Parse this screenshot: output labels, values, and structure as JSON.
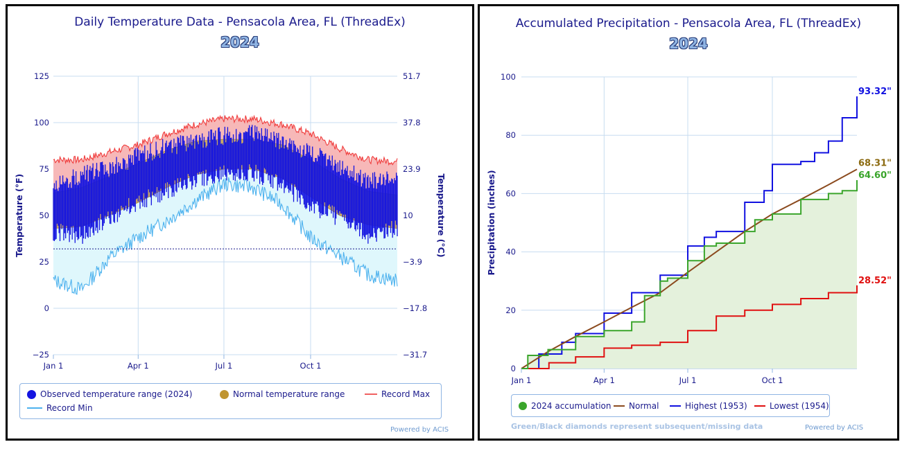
{
  "panels": {
    "temperature": {
      "title": "Daily Temperature Data - Pensacola Area, FL (ThreadEx)",
      "year": "2024",
      "left_axis_title": "Temperature (°F)",
      "right_axis_title": "Temperature (°C)",
      "left_ticks": [
        "125",
        "100",
        "75",
        "50",
        "25",
        "0",
        "−25"
      ],
      "right_ticks": [
        "51.7",
        "37.8",
        "23.9",
        "10",
        "−3.9",
        "−17.8",
        "−31.7"
      ],
      "x_ticks": [
        "Jan 1",
        "Apr 1",
        "Jul 1",
        "Oct 1"
      ],
      "legend": {
        "observed": "Observed temperature range (2024)",
        "normal": "Normal temperature range",
        "record_max": "Record Max",
        "record_min": "Record Min"
      },
      "credit": "Powered by ACIS"
    },
    "precipitation": {
      "title": "Accumulated Precipitation - Pensacola Area, FL (ThreadEx)",
      "year": "2024",
      "y_axis_title": "Precipitation (inches)",
      "y_ticks": [
        "100",
        "80",
        "60",
        "40",
        "20",
        "0"
      ],
      "x_ticks": [
        "Jan 1",
        "Apr 1",
        "Jul 1",
        "Oct 1"
      ],
      "end_labels": {
        "highest": "93.32\"",
        "normal": "68.31\"",
        "accum": "64.60\"",
        "lowest": "28.52\""
      },
      "legend": {
        "accum": "2024 accumulation",
        "normal": "Normal",
        "highest": "Highest (1953)",
        "lowest": "Lowest (1954)"
      },
      "note": "Green/Black diamonds represent subsequent/missing data",
      "credit": "Powered by ACIS"
    }
  },
  "colors": {
    "observed": "#1414e0",
    "normal_fill": "#c9a866",
    "record_max": "#f03c3c",
    "record_max_fill": "#f7b8b8",
    "record_min": "#4db2ee",
    "record_min_fill": "#dff7fc",
    "accum": "#3aa52b",
    "accum_fill": "#e4f1dc",
    "normal_precip": "#8b4a1e",
    "highest": "#1010e0",
    "lowest": "#e01010",
    "freezing_line": "#1a1a8c"
  },
  "chart_data": [
    {
      "type": "area",
      "title": "Daily Temperature Data - Pensacola Area, FL (ThreadEx)",
      "subtitle": "2024",
      "ylabel": "Temperature (°F)",
      "y2label": "Temperature (°C)",
      "ylim": [
        -25,
        125
      ],
      "y2lim": [
        -31.7,
        51.7
      ],
      "x_ticks": [
        "Jan 1",
        "Apr 1",
        "Jul 1",
        "Oct 1"
      ],
      "x_domain_days": [
        1,
        366
      ],
      "grid": true,
      "freezing_line_f": 32,
      "series": [
        {
          "name": "Record Max",
          "x": [
            1,
            31,
            60,
            91,
            121,
            152,
            182,
            213,
            244,
            274,
            305,
            335,
            366
          ],
          "values": [
            80,
            80,
            84,
            88,
            94,
            99,
            102,
            102,
            99,
            94,
            86,
            80,
            79
          ]
        },
        {
          "name": "Record Min",
          "x": [
            1,
            31,
            60,
            91,
            121,
            152,
            182,
            213,
            244,
            274,
            305,
            335,
            366
          ],
          "values": [
            15,
            10,
            27,
            38,
            47,
            58,
            67,
            65,
            56,
            38,
            28,
            18,
            15
          ]
        },
        {
          "name": "Normal temperature range (high)",
          "x": [
            1,
            31,
            60,
            91,
            121,
            152,
            182,
            213,
            244,
            274,
            305,
            335,
            366
          ],
          "values": [
            62,
            65,
            71,
            78,
            85,
            90,
            91,
            91,
            88,
            80,
            70,
            63,
            61
          ]
        },
        {
          "name": "Normal temperature range (low)",
          "x": [
            1,
            31,
            60,
            91,
            121,
            152,
            182,
            213,
            244,
            274,
            305,
            335,
            366
          ],
          "values": [
            43,
            44,
            50,
            57,
            65,
            72,
            75,
            75,
            70,
            60,
            50,
            45,
            43
          ]
        },
        {
          "name": "Observed temperature range (2024) (high)",
          "x": [
            1,
            31,
            60,
            91,
            121,
            152,
            182,
            213,
            244,
            274,
            305,
            335,
            366
          ],
          "values": [
            66,
            72,
            75,
            82,
            87,
            90,
            93,
            94,
            90,
            84,
            76,
            68,
            72
          ]
        },
        {
          "name": "Observed temperature range (2024) (low)",
          "x": [
            1,
            31,
            60,
            91,
            121,
            152,
            182,
            213,
            244,
            274,
            305,
            335,
            366
          ],
          "values": [
            44,
            42,
            52,
            60,
            66,
            72,
            75,
            76,
            70,
            58,
            52,
            42,
            46
          ]
        }
      ]
    },
    {
      "type": "line",
      "title": "Accumulated Precipitation - Pensacola Area, FL (ThreadEx)",
      "subtitle": "2024",
      "ylabel": "Precipitation (inches)",
      "ylim": [
        0,
        100
      ],
      "x_ticks": [
        "Jan 1",
        "Apr 1",
        "Jul 1",
        "Oct 1"
      ],
      "x_domain_days": [
        1,
        366
      ],
      "grid": true,
      "series": [
        {
          "name": "2024 accumulation",
          "x": [
            1,
            8,
            30,
            60,
            91,
            121,
            135,
            152,
            160,
            182,
            200,
            213,
            244,
            255,
            274,
            290,
            305,
            335,
            350,
            366
          ],
          "values": [
            0,
            4.5,
            6.5,
            11,
            13,
            16,
            25,
            30,
            31,
            37,
            42,
            43,
            47,
            51,
            53,
            53,
            58,
            60,
            61,
            64.6
          ]
        },
        {
          "name": "Normal",
          "x": [
            1,
            31,
            60,
            91,
            121,
            152,
            182,
            213,
            244,
            274,
            305,
            335,
            366
          ],
          "values": [
            0,
            6,
            11,
            16,
            21,
            26,
            33,
            40,
            47,
            53,
            58,
            63,
            68.31
          ]
        },
        {
          "name": "Highest (1953)",
          "x": [
            1,
            20,
            45,
            60,
            91,
            121,
            152,
            182,
            200,
            213,
            244,
            265,
            274,
            305,
            320,
            335,
            350,
            366
          ],
          "values": [
            0,
            5,
            9,
            12,
            19,
            26,
            32,
            42,
            45,
            47,
            57,
            61,
            70,
            71,
            74,
            78,
            86,
            93.32
          ]
        },
        {
          "name": "Lowest (1954)",
          "x": [
            1,
            31,
            60,
            91,
            121,
            152,
            182,
            213,
            244,
            274,
            305,
            335,
            366
          ],
          "values": [
            0,
            2,
            4,
            7,
            8,
            9,
            13,
            18,
            20,
            22,
            24,
            26,
            28.52
          ]
        }
      ]
    }
  ]
}
